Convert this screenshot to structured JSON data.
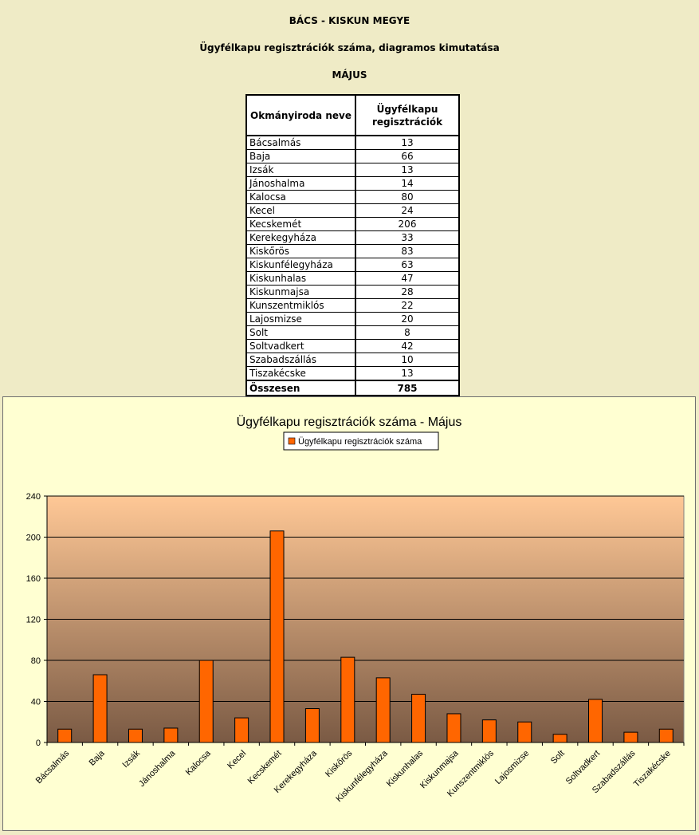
{
  "header": {
    "county": "BÁCS - KISKUN MEGYE",
    "subtitle": "Ügyfélkapu regisztrációk száma, diagramos kimutatása",
    "month": "MÁJUS"
  },
  "table": {
    "col_name": "Okmányiroda neve",
    "col_value": "Ügyfélkapu regisztrációk",
    "rows": [
      {
        "name": "Bácsalmás",
        "value": "13"
      },
      {
        "name": "Baja",
        "value": "66"
      },
      {
        "name": "Izsák",
        "value": "13"
      },
      {
        "name": "Jánoshalma",
        "value": "14"
      },
      {
        "name": "Kalocsa",
        "value": "80"
      },
      {
        "name": "Kecel",
        "value": "24"
      },
      {
        "name": "Kecskemét",
        "value": "206"
      },
      {
        "name": "Kerekegyháza",
        "value": "33"
      },
      {
        "name": "Kiskőrös",
        "value": "83"
      },
      {
        "name": "Kiskunfélegyháza",
        "value": "63"
      },
      {
        "name": "Kiskunhalas",
        "value": "47"
      },
      {
        "name": "Kiskunmajsa",
        "value": "28"
      },
      {
        "name": "Kunszentmiklós",
        "value": "22"
      },
      {
        "name": "Lajosmizse",
        "value": "20"
      },
      {
        "name": "Solt",
        "value": "8"
      },
      {
        "name": "Soltvadkert",
        "value": "42"
      },
      {
        "name": "Szabadszállás",
        "value": "10"
      },
      {
        "name": "Tiszakécske",
        "value": "13"
      }
    ],
    "total_label": "Összesen",
    "total_value": "785"
  },
  "chart_data": {
    "type": "bar",
    "title": "Ügyfélkapu regisztrációk száma - Május",
    "xlabel": "",
    "ylabel": "",
    "categories": [
      "Bácsalmás",
      "Baja",
      "Izsák",
      "Jánoshalma",
      "Kalocsa",
      "Kecel",
      "Kecskemét",
      "Kerekegyháza",
      "Kiskőrös",
      "Kiskunfélegyháza",
      "Kiskunhalas",
      "Kiskunmajsa",
      "Kunszentmiklós",
      "Lajosmizse",
      "Solt",
      "Soltvadkert",
      "Szabadszállás",
      "Tiszakécske"
    ],
    "series": [
      {
        "name": "Ügyfélkapu regisztrációk száma",
        "values": [
          13,
          66,
          13,
          14,
          80,
          24,
          206,
          33,
          83,
          63,
          47,
          28,
          22,
          20,
          8,
          42,
          10,
          13
        ],
        "color": "#ff6600"
      }
    ],
    "ylim": [
      0,
      240
    ],
    "yticks": [
      0,
      40,
      80,
      120,
      160,
      200,
      240
    ],
    "grid": true,
    "legend": "top-center",
    "colors": {
      "background": "#ffffd2",
      "plot_top": "#ffc896",
      "plot_bottom": "#7a5a44",
      "bar": "#ff6600"
    }
  }
}
